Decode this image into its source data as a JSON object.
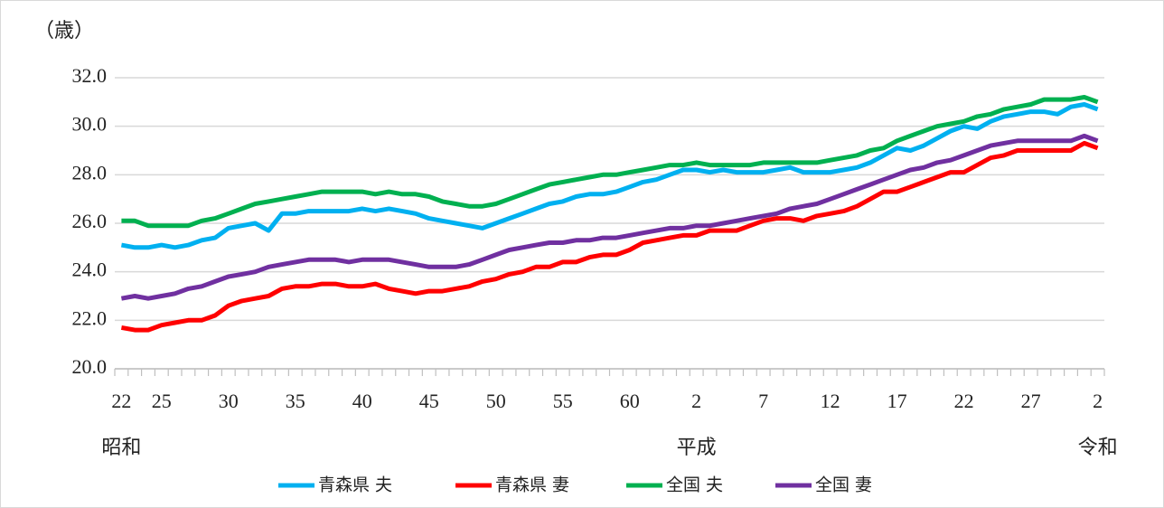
{
  "chart_data": {
    "type": "line",
    "y_label": "（歳）",
    "annotations": [
      "昭和",
      "平成",
      "令和"
    ],
    "categories": [
      "22",
      null,
      null,
      "25",
      null,
      null,
      null,
      null,
      "30",
      null,
      null,
      null,
      null,
      "35",
      null,
      null,
      null,
      null,
      "40",
      null,
      null,
      null,
      null,
      "45",
      null,
      null,
      null,
      null,
      "50",
      null,
      null,
      null,
      null,
      "55",
      null,
      null,
      null,
      null,
      "60",
      null,
      null,
      null,
      null,
      "2",
      null,
      null,
      null,
      null,
      "7",
      null,
      null,
      null,
      null,
      "12",
      null,
      null,
      null,
      null,
      "17",
      null,
      null,
      null,
      null,
      "22",
      null,
      null,
      null,
      null,
      "27",
      null,
      null,
      null,
      null,
      "2"
    ],
    "series": [
      {
        "name": "青森県 夫",
        "color": "#00b0f0",
        "values": [
          25.1,
          25.0,
          25.0,
          25.1,
          25.0,
          25.1,
          25.3,
          25.4,
          25.8,
          25.9,
          26.0,
          25.7,
          26.4,
          26.4,
          26.5,
          26.5,
          26.5,
          26.5,
          26.6,
          26.5,
          26.6,
          26.5,
          26.4,
          26.2,
          26.1,
          26.0,
          25.9,
          25.8,
          26.0,
          26.2,
          26.4,
          26.6,
          26.8,
          26.9,
          27.1,
          27.2,
          27.2,
          27.3,
          27.5,
          27.7,
          27.8,
          28.0,
          28.2,
          28.2,
          28.1,
          28.2,
          28.1,
          28.1,
          28.1,
          28.2,
          28.3,
          28.1,
          28.1,
          28.1,
          28.2,
          28.3,
          28.5,
          28.8,
          29.1,
          29.0,
          29.2,
          29.5,
          29.8,
          30.0,
          29.9,
          30.2,
          30.4,
          30.5,
          30.6,
          30.6,
          30.5,
          30.8,
          30.9,
          30.7
        ]
      },
      {
        "name": "青森県 妻",
        "color": "#ff0000",
        "values": [
          21.7,
          21.6,
          21.6,
          21.8,
          21.9,
          22.0,
          22.0,
          22.2,
          22.6,
          22.8,
          22.9,
          23.0,
          23.3,
          23.4,
          23.4,
          23.5,
          23.5,
          23.4,
          23.4,
          23.5,
          23.3,
          23.2,
          23.1,
          23.2,
          23.2,
          23.3,
          23.4,
          23.6,
          23.7,
          23.9,
          24.0,
          24.2,
          24.2,
          24.4,
          24.4,
          24.6,
          24.7,
          24.7,
          24.9,
          25.2,
          25.3,
          25.4,
          25.5,
          25.5,
          25.7,
          25.7,
          25.7,
          25.9,
          26.1,
          26.2,
          26.2,
          26.1,
          26.3,
          26.4,
          26.5,
          26.7,
          27.0,
          27.3,
          27.3,
          27.5,
          27.7,
          27.9,
          28.1,
          28.1,
          28.4,
          28.7,
          28.8,
          29.0,
          29.0,
          29.0,
          29.0,
          29.0,
          29.3,
          29.1
        ]
      },
      {
        "name": "全国 夫",
        "color": "#00b050",
        "values": [
          26.1,
          26.1,
          25.9,
          25.9,
          25.9,
          25.9,
          26.1,
          26.2,
          26.4,
          26.6,
          26.8,
          26.9,
          27.0,
          27.1,
          27.2,
          27.3,
          27.3,
          27.3,
          27.3,
          27.2,
          27.3,
          27.2,
          27.2,
          27.1,
          26.9,
          26.8,
          26.7,
          26.7,
          26.8,
          27.0,
          27.2,
          27.4,
          27.6,
          27.7,
          27.8,
          27.9,
          28.0,
          28.0,
          28.1,
          28.2,
          28.3,
          28.4,
          28.4,
          28.5,
          28.4,
          28.4,
          28.4,
          28.4,
          28.5,
          28.5,
          28.5,
          28.5,
          28.5,
          28.6,
          28.7,
          28.8,
          29.0,
          29.1,
          29.4,
          29.6,
          29.8,
          30.0,
          30.1,
          30.2,
          30.4,
          30.5,
          30.7,
          30.8,
          30.9,
          31.1,
          31.1,
          31.1,
          31.2,
          31.0
        ]
      },
      {
        "name": "全国 妻",
        "color": "#7030a0",
        "values": [
          22.9,
          23.0,
          22.9,
          23.0,
          23.1,
          23.3,
          23.4,
          23.6,
          23.8,
          23.9,
          24.0,
          24.2,
          24.3,
          24.4,
          24.5,
          24.5,
          24.5,
          24.4,
          24.5,
          24.5,
          24.5,
          24.4,
          24.3,
          24.2,
          24.2,
          24.2,
          24.3,
          24.5,
          24.7,
          24.9,
          25.0,
          25.1,
          25.2,
          25.2,
          25.3,
          25.3,
          25.4,
          25.4,
          25.5,
          25.6,
          25.7,
          25.8,
          25.8,
          25.9,
          25.9,
          26.0,
          26.1,
          26.2,
          26.3,
          26.4,
          26.6,
          26.7,
          26.8,
          27.0,
          27.2,
          27.4,
          27.6,
          27.8,
          28.0,
          28.2,
          28.3,
          28.5,
          28.6,
          28.8,
          29.0,
          29.2,
          29.3,
          29.4,
          29.4,
          29.4,
          29.4,
          29.4,
          29.6,
          29.4
        ]
      }
    ],
    "ylim": [
      20,
      32
    ],
    "yticks": [
      {
        "value": 20,
        "label": "20.0"
      },
      {
        "value": 22,
        "label": "22.0"
      },
      {
        "value": 24,
        "label": "24.0"
      },
      {
        "value": 26,
        "label": "26.0"
      },
      {
        "value": 28,
        "label": "28.0"
      },
      {
        "value": 30,
        "label": "30.0"
      },
      {
        "value": 32,
        "label": "32.0"
      }
    ],
    "grid": true,
    "legend": "bottom"
  }
}
